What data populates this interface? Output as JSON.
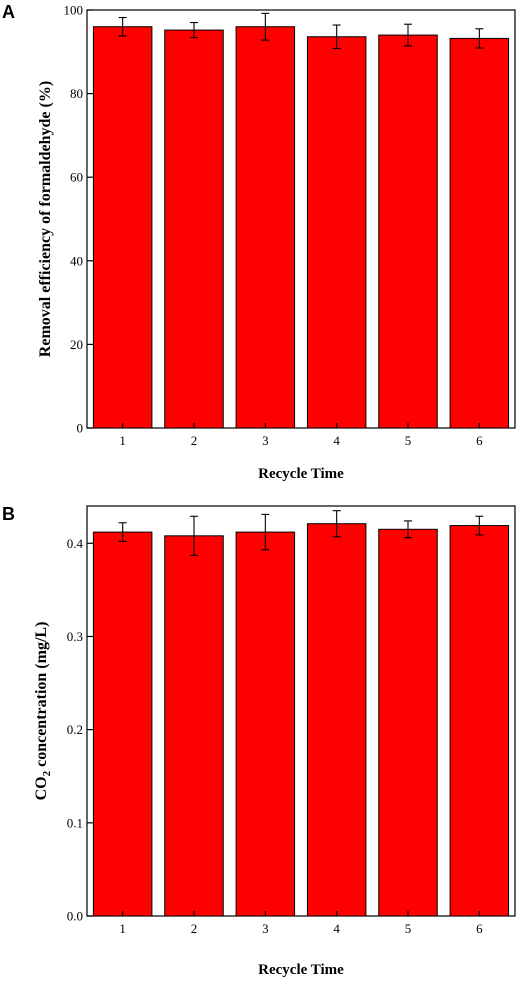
{
  "chart_data": [
    {
      "panel": "A",
      "type": "bar",
      "categories": [
        "1",
        "2",
        "3",
        "4",
        "5",
        "6"
      ],
      "values": [
        96.0,
        95.2,
        96.0,
        93.6,
        94.0,
        93.2
      ],
      "errors": [
        2.2,
        1.8,
        3.2,
        2.8,
        2.6,
        2.3
      ],
      "xlabel": "Recycle Time",
      "ylabel": "Removal efficiency of formaldehyde (%)",
      "ylim": [
        0,
        100
      ],
      "yticks": [
        "0",
        "20",
        "40",
        "60",
        "80",
        "100"
      ],
      "bar_color": "#ff0000"
    },
    {
      "panel": "B",
      "type": "bar",
      "categories": [
        "1",
        "2",
        "3",
        "4",
        "5",
        "6"
      ],
      "values": [
        0.412,
        0.408,
        0.412,
        0.421,
        0.415,
        0.419
      ],
      "errors": [
        0.01,
        0.021,
        0.019,
        0.014,
        0.009,
        0.01
      ],
      "xlabel": "Recycle Time",
      "ylabel_main": "CO",
      "ylabel_sub": "2",
      "ylabel_rest": " concentration (mg/L)",
      "ylim": [
        0,
        0.44
      ],
      "yticks": [
        "0.0",
        "0.1",
        "0.2",
        "0.3",
        "0.4"
      ],
      "bar_color": "#ff0000"
    }
  ]
}
